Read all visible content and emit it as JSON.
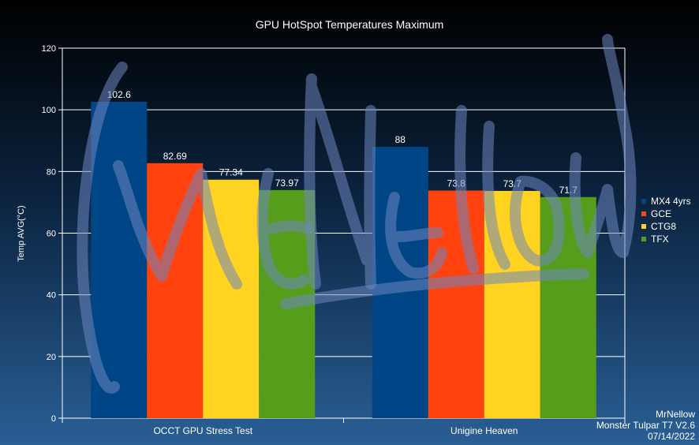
{
  "chart_data": {
    "type": "bar",
    "title": "GPU HotSpot Temperatures Maximum",
    "ylabel": "Temp AVG(°C)",
    "xlabel": "",
    "ylim": [
      0,
      120
    ],
    "yticks": [
      "0",
      "20",
      "40",
      "60",
      "80",
      "100",
      "120"
    ],
    "categories": [
      "OCCT GPU Stress Test",
      "Unigine Heaven"
    ],
    "series": [
      {
        "name": "MX4 4yrs",
        "color": "#004586",
        "values": [
          102.6,
          88
        ],
        "labels": [
          "102.6",
          "88"
        ]
      },
      {
        "name": "GCE",
        "color": "#ff420e",
        "values": [
          82.69,
          73.8
        ],
        "labels": [
          "82.69",
          "73.8"
        ]
      },
      {
        "name": "CTG8",
        "color": "#ffd320",
        "values": [
          77.34,
          73.7
        ],
        "labels": [
          "77.34",
          "73.7"
        ]
      },
      {
        "name": "TFX",
        "color": "#579d1c",
        "values": [
          73.97,
          71.7
        ],
        "labels": [
          "73.97",
          "71.7"
        ]
      }
    ],
    "grid": true,
    "legend": "right"
  },
  "footer": {
    "line1": "MrNellow",
    "line2": "Monster Tulpar T7 V2.6",
    "line3": "07/14/2022"
  },
  "watermark": "MrNellow"
}
